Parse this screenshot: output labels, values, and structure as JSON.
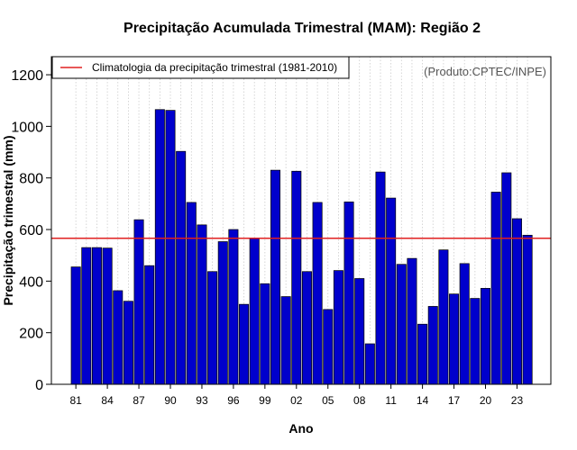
{
  "chart_data": {
    "type": "bar",
    "title": "Precipitação Acumulada Trimestral (MAM): Região 2",
    "xlabel": "Ano",
    "ylabel": "Precipitação trimestral (mm)",
    "credit": "(Produto:CPTEC/INPE)",
    "ylim": [
      0,
      1270
    ],
    "yticks": [
      0,
      200,
      400,
      600,
      800,
      1000,
      1200
    ],
    "bar_color": "#0000cc",
    "line_color": "#e02020",
    "x": [
      1981,
      1982,
      1983,
      1984,
      1985,
      1986,
      1987,
      1988,
      1989,
      1990,
      1991,
      1992,
      1993,
      1994,
      1995,
      1996,
      1997,
      1998,
      1999,
      2000,
      2001,
      2002,
      2003,
      2004,
      2005,
      2006,
      2007,
      2008,
      2009,
      2010,
      2011,
      2012,
      2013,
      2014,
      2015,
      2016,
      2017,
      2018,
      2019,
      2020,
      2021,
      2022,
      2023,
      2024
    ],
    "values": [
      455,
      530,
      530,
      528,
      363,
      322,
      638,
      460,
      1065,
      1062,
      903,
      705,
      618,
      437,
      553,
      600,
      310,
      566,
      390,
      830,
      340,
      826,
      437,
      705,
      290,
      441,
      707,
      410,
      157,
      823,
      722,
      465,
      488,
      233,
      302,
      521,
      350,
      468,
      333,
      372,
      745,
      820,
      642,
      578
    ],
    "xtick_labels": [
      "81",
      "84",
      "87",
      "90",
      "93",
      "96",
      "99",
      "02",
      "05",
      "08",
      "11",
      "14",
      "17",
      "20",
      "23"
    ],
    "xtick_years": [
      1981,
      1984,
      1987,
      1990,
      1993,
      1996,
      1999,
      2002,
      2005,
      2008,
      2011,
      2014,
      2017,
      2020,
      2023
    ],
    "reference_line": {
      "label": "Climatologia da precipitação trimestral (1981-2010)",
      "value": 566
    },
    "legend_position": "top-left",
    "grid": "vertical-dotted"
  }
}
